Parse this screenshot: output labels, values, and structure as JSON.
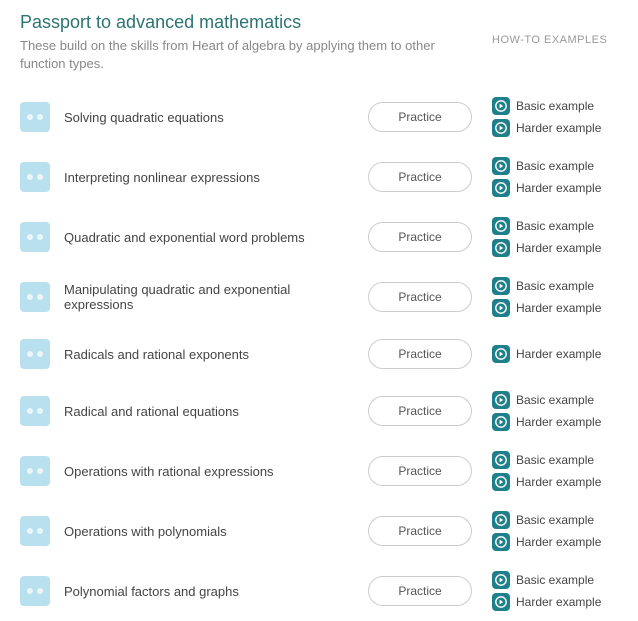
{
  "colors": {
    "title": "#2b7472",
    "subtitle": "#888888",
    "howto_header": "#999999",
    "skill_text": "#444444",
    "skill_icon_bg": "#b8e0ee",
    "practice_border": "#cccccc",
    "practice_text": "#555555",
    "play_bg": "#1f7f8a",
    "play_ring": "#ffffff",
    "play_tri": "#ffffff"
  },
  "header": {
    "title": "Passport to advanced mathematics",
    "subtitle": "These build on the skills from Heart of algebra by applying them to other function types.",
    "howto_label": "HOW-TO EXAMPLES"
  },
  "practice_label": "Practice",
  "example_labels": {
    "basic": "Basic example",
    "harder": "Harder example"
  },
  "skills": [
    {
      "name": "Solving quadratic equations",
      "examples": [
        "basic",
        "harder"
      ]
    },
    {
      "name": "Interpreting nonlinear expressions",
      "examples": [
        "basic",
        "harder"
      ]
    },
    {
      "name": "Quadratic and exponential word problems",
      "examples": [
        "basic",
        "harder"
      ]
    },
    {
      "name": "Manipulating quadratic and exponential expressions",
      "examples": [
        "basic",
        "harder"
      ]
    },
    {
      "name": "Radicals and rational exponents",
      "examples": [
        "harder"
      ]
    },
    {
      "name": "Radical and rational equations",
      "examples": [
        "basic",
        "harder"
      ]
    },
    {
      "name": "Operations with rational expressions",
      "examples": [
        "basic",
        "harder"
      ]
    },
    {
      "name": "Operations with polynomials",
      "examples": [
        "basic",
        "harder"
      ]
    },
    {
      "name": "Polynomial factors and graphs",
      "examples": [
        "basic",
        "harder"
      ]
    }
  ]
}
